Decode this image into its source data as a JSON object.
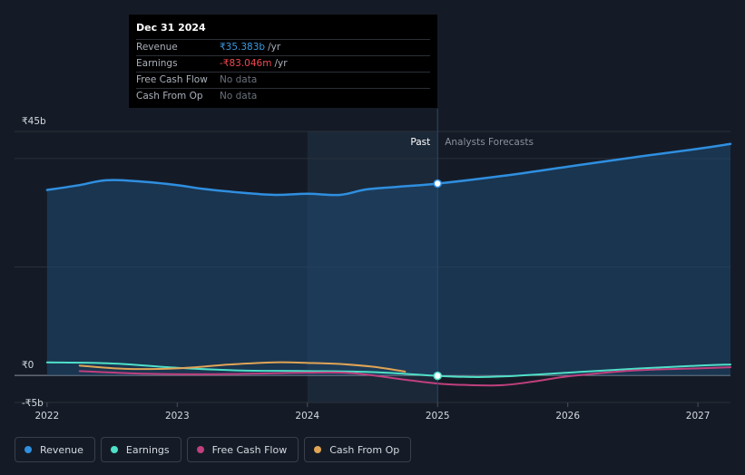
{
  "tooltip": {
    "date": "Dec 31 2024",
    "rows": [
      {
        "label": "Revenue",
        "value": "₹35.383b",
        "unit": "/yr",
        "color": "#3b9ae1"
      },
      {
        "label": "Earnings",
        "value": "-₹83.046m",
        "unit": "/yr",
        "color": "#f0474f"
      },
      {
        "label": "Free Cash Flow",
        "value": "No data",
        "unit": "",
        "color": "#6b717b"
      },
      {
        "label": "Cash From Op",
        "value": "No data",
        "unit": "",
        "color": "#6b717b"
      }
    ]
  },
  "regions": {
    "past": "Past",
    "forecast": "Analysts Forecasts"
  },
  "legend": [
    {
      "label": "Revenue",
      "color": "#2f8fe0"
    },
    {
      "label": "Earnings",
      "color": "#4fe0c8"
    },
    {
      "label": "Free Cash Flow",
      "color": "#c0407e"
    },
    {
      "label": "Cash From Op",
      "color": "#e0a455"
    }
  ],
  "chart_data": {
    "type": "line",
    "y_tick_labels": [
      "₹45b",
      "₹0",
      "-₹5b"
    ],
    "y_ticks": [
      45,
      0,
      -5
    ],
    "ylim": [
      -5,
      45
    ],
    "x_tick_labels": [
      "2022",
      "2023",
      "2024",
      "2025",
      "2026",
      "2027"
    ],
    "x_ticks": [
      2022,
      2023,
      2024,
      2025,
      2026,
      2027
    ],
    "xlim": [
      2021.75,
      2027.25
    ],
    "divider_x": 2025.0,
    "highlight_start_x": 2024.0,
    "series": [
      {
        "name": "Revenue",
        "color": "#2f8fe0",
        "fill": true,
        "x": [
          2022.0,
          2022.25,
          2022.45,
          2022.7,
          2023.0,
          2023.2,
          2023.5,
          2023.75,
          2024.0,
          2024.25,
          2024.45,
          2024.7,
          2025.0,
          2025.5,
          2026.0,
          2026.5,
          2027.0,
          2027.25
        ],
        "y": [
          34.2,
          35.1,
          36.0,
          35.8,
          35.1,
          34.4,
          33.7,
          33.3,
          33.5,
          33.3,
          34.3,
          34.8,
          35.383,
          36.8,
          38.5,
          40.2,
          41.8,
          42.7
        ]
      },
      {
        "name": "Earnings",
        "color": "#4fe0c8",
        "fill": false,
        "x": [
          2022.0,
          2022.5,
          2023.0,
          2023.5,
          2024.0,
          2024.5,
          2025.0,
          2025.25,
          2025.5,
          2026.0,
          2026.5,
          2027.0,
          2027.25
        ],
        "y": [
          2.4,
          2.2,
          1.4,
          0.9,
          0.8,
          0.6,
          -0.083,
          -0.3,
          -0.2,
          0.5,
          1.2,
          1.8,
          2.0
        ]
      },
      {
        "name": "Free Cash Flow",
        "color": "#c0407e",
        "fill": false,
        "x": [
          2022.25,
          2022.75,
          2023.25,
          2023.75,
          2024.0,
          2024.35,
          2024.75,
          2025.0,
          2025.25,
          2025.5,
          2025.75,
          2026.0,
          2026.5,
          2027.0,
          2027.25
        ],
        "y": [
          0.8,
          0.3,
          0.2,
          0.4,
          0.5,
          0.4,
          -0.8,
          -1.5,
          -1.8,
          -1.8,
          -1.1,
          -0.2,
          0.9,
          1.3,
          1.5
        ]
      },
      {
        "name": "Cash From Op",
        "color": "#e0a455",
        "fill": false,
        "x": [
          2022.25,
          2022.6,
          2023.0,
          2023.4,
          2023.75,
          2024.0,
          2024.25,
          2024.5,
          2024.75
        ],
        "y": [
          1.8,
          1.2,
          1.3,
          2.0,
          2.4,
          2.3,
          2.1,
          1.6,
          0.7
        ]
      }
    ]
  }
}
